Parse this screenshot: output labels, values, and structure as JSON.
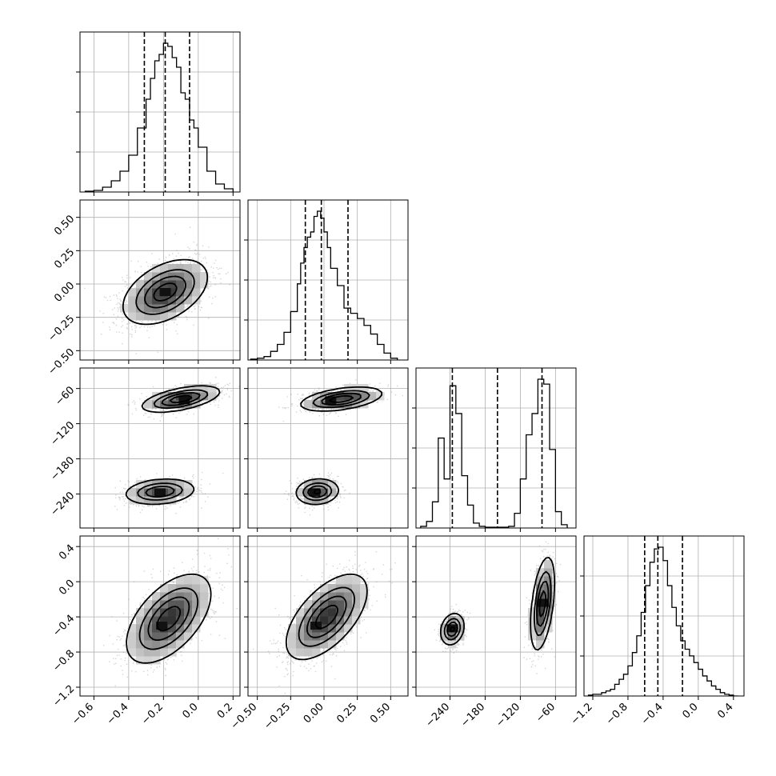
{
  "chart_data": {
    "type": "corner",
    "parameters": 4,
    "grid": true,
    "panel_ranges": [
      [
        -0.68,
        0.24
      ],
      [
        -0.57,
        0.63
      ],
      [
        -298,
        -25
      ],
      [
        -1.3,
        0.52
      ]
    ],
    "y_ranges": [
      [
        -0.57,
        0.63
      ],
      [
        -298,
        -25
      ],
      [
        -1.3,
        0.52
      ]
    ],
    "x_ticks": [
      [
        "−0.6",
        "−0.4",
        "−0.2",
        "0.0",
        "0.2"
      ],
      [
        "−0.50",
        "−0.25",
        "0.00",
        "0.25",
        "0.50"
      ],
      [
        "−240",
        "−180",
        "−120",
        "−60"
      ],
      [
        "−1.2",
        "−0.8",
        "−0.4",
        "0.0",
        "0.4"
      ]
    ],
    "x_tick_values": [
      [
        -0.6,
        -0.4,
        -0.2,
        0.0,
        0.2
      ],
      [
        -0.5,
        -0.25,
        0.0,
        0.25,
        0.5
      ],
      [
        -240,
        -180,
        -120,
        -60
      ],
      [
        -1.2,
        -0.8,
        -0.4,
        0.0,
        0.4
      ]
    ],
    "y_ticks": [
      [
        "−0.50",
        "−0.25",
        "0.00",
        "0.25",
        "0.50"
      ],
      [
        "−240",
        "−180",
        "−120",
        "−60"
      ],
      [
        "−1.2",
        "−0.8",
        "−0.4",
        "0.0",
        "0.4"
      ]
    ],
    "y_tick_values": [
      [
        -0.5,
        -0.25,
        0.0,
        0.25,
        0.5
      ],
      [
        -240,
        -180,
        -120,
        -60
      ],
      [
        -1.2,
        -0.8,
        -0.4,
        0.0,
        0.4
      ]
    ],
    "quantiles": [
      [
        -0.31,
        -0.19,
        -0.05
      ],
      [
        -0.14,
        -0.02,
        0.18
      ],
      [
        -236,
        -159,
        -83
      ],
      [
        -0.61,
        -0.46,
        -0.18
      ]
    ],
    "histograms": [
      {
        "edges": [
          -0.65,
          -0.6,
          -0.55,
          -0.5,
          -0.45,
          -0.4,
          -0.35,
          -0.3,
          -0.275,
          -0.25,
          -0.225,
          -0.2,
          -0.175,
          -0.15,
          -0.125,
          -0.1,
          -0.075,
          -0.05,
          -0.025,
          0.0,
          0.05,
          0.1,
          0.15,
          0.2
        ],
        "counts": [
          0.005,
          0.01,
          0.03,
          0.07,
          0.13,
          0.23,
          0.4,
          0.58,
          0.71,
          0.82,
          0.86,
          0.93,
          0.91,
          0.84,
          0.78,
          0.62,
          0.58,
          0.45,
          0.4,
          0.28,
          0.13,
          0.05,
          0.02
        ]
      },
      {
        "edges": [
          -0.55,
          -0.5,
          -0.45,
          -0.4,
          -0.35,
          -0.3,
          -0.25,
          -0.2,
          -0.175,
          -0.15,
          -0.125,
          -0.1,
          -0.075,
          -0.05,
          -0.025,
          0.0,
          0.025,
          0.05,
          0.1,
          0.15,
          0.2,
          0.25,
          0.3,
          0.35,
          0.4,
          0.45,
          0.5,
          0.55
        ],
        "counts": [
          0.005,
          0.01,
          0.02,
          0.05,
          0.09,
          0.16,
          0.28,
          0.44,
          0.56,
          0.65,
          0.71,
          0.74,
          0.83,
          0.86,
          0.82,
          0.74,
          0.65,
          0.53,
          0.43,
          0.3,
          0.27,
          0.24,
          0.2,
          0.15,
          0.09,
          0.04,
          0.01
        ]
      },
      {
        "edges": [
          -290,
          -280,
          -270,
          -260,
          -250,
          -240,
          -230,
          -220,
          -210,
          -200,
          -190,
          -180,
          -170,
          -160,
          -150,
          -140,
          -130,
          -120,
          -110,
          -100,
          -90,
          -80,
          -70,
          -60,
          -50,
          -40
        ],
        "counts": [
          0.01,
          0.04,
          0.16,
          0.55,
          0.3,
          0.87,
          0.7,
          0.32,
          0.14,
          0.03,
          0.01,
          0.005,
          0.005,
          0.005,
          0.005,
          0.01,
          0.09,
          0.3,
          0.57,
          0.7,
          0.91,
          0.88,
          0.48,
          0.1,
          0.02
        ]
      },
      {
        "edges": [
          -1.25,
          -1.2,
          -1.15,
          -1.1,
          -1.05,
          -1.0,
          -0.95,
          -0.9,
          -0.85,
          -0.8,
          -0.75,
          -0.7,
          -0.65,
          -0.6,
          -0.55,
          -0.5,
          -0.45,
          -0.4,
          -0.35,
          -0.3,
          -0.25,
          -0.2,
          -0.15,
          -0.1,
          -0.05,
          0.0,
          0.05,
          0.1,
          0.15,
          0.2,
          0.25,
          0.3,
          0.35,
          0.4,
          0.45
        ],
        "counts": [
          0.005,
          0.01,
          0.01,
          0.02,
          0.03,
          0.04,
          0.07,
          0.1,
          0.13,
          0.18,
          0.26,
          0.36,
          0.5,
          0.66,
          0.8,
          0.88,
          0.89,
          0.81,
          0.66,
          0.53,
          0.42,
          0.33,
          0.28,
          0.24,
          0.2,
          0.16,
          0.12,
          0.09,
          0.06,
          0.04,
          0.02,
          0.01,
          0.005,
          0.0
        ]
      }
    ],
    "density_2d": [
      {
        "row": 1,
        "col": 0,
        "components": [
          {
            "weight": 1.0,
            "mean": [
              -0.19,
              -0.06
            ],
            "sd": [
              0.12,
              0.12
            ],
            "corr": 0.45
          }
        ],
        "mode": [
          -0.19,
          -0.06
        ],
        "n_points": 1600
      },
      {
        "row": 2,
        "col": 0,
        "components": [
          {
            "weight": 0.5,
            "mean": [
              -0.1,
              -78
            ],
            "sd": [
              0.11,
              11
            ],
            "corr": 0.55
          },
          {
            "weight": 0.5,
            "mean": [
              -0.22,
              -236
            ],
            "sd": [
              0.1,
              11
            ],
            "corr": 0.2
          }
        ],
        "mode": [
          -0.08,
          -80
        ],
        "mode2": [
          -0.22,
          -237
        ],
        "n_points": 1600
      },
      {
        "row": 2,
        "col": 1,
        "components": [
          {
            "weight": 0.5,
            "mean": [
              0.13,
              -78
            ],
            "sd": [
              0.15,
              10
            ],
            "corr": 0.45
          },
          {
            "weight": 0.5,
            "mean": [
              -0.05,
              -236
            ],
            "sd": [
              0.08,
              11
            ],
            "corr": 0.1
          }
        ],
        "mode": [
          0.05,
          -80
        ],
        "mode2": [
          -0.07,
          -237
        ],
        "n_points": 1600
      },
      {
        "row": 3,
        "col": 0,
        "components": [
          {
            "weight": 1.0,
            "mean": [
              -0.17,
              -0.42
            ],
            "sd": [
              0.12,
              0.25
            ],
            "corr": 0.55
          }
        ],
        "mode": [
          -0.21,
          -0.5
        ],
        "n_points": 1600
      },
      {
        "row": 3,
        "col": 1,
        "components": [
          {
            "weight": 1.0,
            "mean": [
              0.02,
              -0.4
            ],
            "sd": [
              0.15,
              0.24
            ],
            "corr": 0.6
          }
        ],
        "mode": [
          -0.06,
          -0.5
        ],
        "n_points": 1600
      },
      {
        "row": 3,
        "col": 2,
        "components": [
          {
            "weight": 0.5,
            "mean": [
              -236,
              -0.54
            ],
            "sd": [
              10,
              0.09
            ],
            "corr": 0.2
          },
          {
            "weight": 0.5,
            "mean": [
              -82,
              -0.25
            ],
            "sd": [
              10,
              0.26
            ],
            "corr": 0.45
          }
        ],
        "mode": [
          -236,
          -0.53
        ],
        "mode2": [
          -81,
          -0.24
        ],
        "n_points": 1600
      }
    ]
  }
}
